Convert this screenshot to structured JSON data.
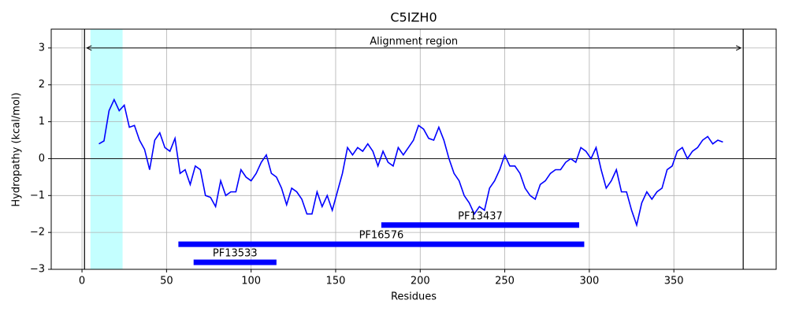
{
  "chart_data": {
    "type": "line",
    "title": "C5IZH0",
    "x_label": "Residues",
    "y_label": "Hydropathy (kcal/mol)",
    "xlim": [
      -18.2,
      410.5
    ],
    "ylim": [
      -3,
      3.51
    ],
    "xticks": [
      0,
      50,
      100,
      150,
      200,
      250,
      300,
      350
    ],
    "yticks": [
      {
        "value": -3,
        "label": "−3"
      },
      {
        "value": -2,
        "label": "−2"
      },
      {
        "value": -1,
        "label": "−1"
      },
      0,
      1,
      2,
      3
    ],
    "grid": true,
    "series": [
      {
        "color": "#0000ff",
        "x": [
          10,
          13,
          16,
          19,
          22,
          25,
          28,
          31,
          34,
          37,
          40,
          43,
          46,
          49,
          52,
          55,
          58,
          61,
          64,
          67,
          70,
          73,
          76,
          79,
          82,
          85,
          88,
          91,
          94,
          97,
          100,
          103,
          106,
          109,
          112,
          115,
          118,
          121,
          124,
          127,
          130,
          133,
          136,
          139,
          142,
          145,
          148,
          151,
          154,
          157,
          160,
          163,
          166,
          169,
          172,
          175,
          178,
          181,
          184,
          187,
          190,
          193,
          196,
          199,
          202,
          205,
          208,
          211,
          214,
          217,
          220,
          223,
          226,
          229,
          232,
          235,
          238,
          241,
          244,
          247,
          250,
          253,
          256,
          259,
          262,
          265,
          268,
          271,
          274,
          277,
          280,
          283,
          286,
          289,
          292,
          295,
          298,
          301,
          304,
          307,
          310,
          313,
          316,
          319,
          322,
          325,
          328,
          331,
          334,
          337,
          340,
          343,
          346,
          349,
          352,
          355,
          358,
          361,
          364,
          367,
          370,
          373,
          376,
          379
        ],
        "values": [
          0.4,
          0.48,
          1.3,
          1.6,
          1.3,
          1.45,
          0.85,
          0.9,
          0.5,
          0.25,
          -0.3,
          0.5,
          0.7,
          0.3,
          0.2,
          0.55,
          -0.4,
          -0.3,
          -0.7,
          -0.2,
          -0.3,
          -1.0,
          -1.05,
          -1.3,
          -0.6,
          -1.0,
          -0.9,
          -0.9,
          -0.3,
          -0.5,
          -0.6,
          -0.4,
          -0.1,
          0.1,
          -0.4,
          -0.5,
          -0.8,
          -1.25,
          -0.8,
          -0.9,
          -1.1,
          -1.5,
          -1.5,
          -0.9,
          -1.3,
          -1.0,
          -1.4,
          -0.9,
          -0.4,
          0.3,
          0.1,
          0.3,
          0.2,
          0.4,
          0.2,
          -0.2,
          0.2,
          -0.1,
          -0.2,
          0.3,
          0.1,
          0.3,
          0.5,
          0.9,
          0.8,
          0.55,
          0.5,
          0.85,
          0.5,
          0.0,
          -0.4,
          -0.6,
          -1.0,
          -1.2,
          -1.5,
          -1.3,
          -1.4,
          -0.8,
          -0.6,
          -0.3,
          0.1,
          -0.2,
          -0.2,
          -0.4,
          -0.8,
          -1.0,
          -1.1,
          -0.7,
          -0.6,
          -0.4,
          -0.3,
          -0.3,
          -0.1,
          0.0,
          -0.1,
          0.3,
          0.2,
          0.0,
          0.3,
          -0.3,
          -0.8,
          -0.6,
          -0.3,
          -0.9,
          -0.9,
          -1.4,
          -1.8,
          -1.2,
          -0.9,
          -1.1,
          -0.9,
          -0.8,
          -0.3,
          -0.2,
          0.2,
          0.3,
          0.0,
          0.2,
          0.3,
          0.5,
          0.6,
          0.4,
          0.5,
          0.45
        ]
      }
    ],
    "highlight": {
      "start": 5,
      "end": 24,
      "color": "#c4ffff"
    },
    "alignment_region": {
      "label": "Alignment region",
      "start": 1.5,
      "end": 391,
      "y": 3
    },
    "domains": [
      {
        "name": "PF13437",
        "start": 177,
        "end": 294,
        "y": -1.8
      },
      {
        "name": "PF16576",
        "start": 57,
        "end": 297,
        "y": -2.32
      },
      {
        "name": "PF13533",
        "start": 66,
        "end": 115,
        "y": -2.81
      }
    ],
    "domain_color": "#0000ff"
  }
}
